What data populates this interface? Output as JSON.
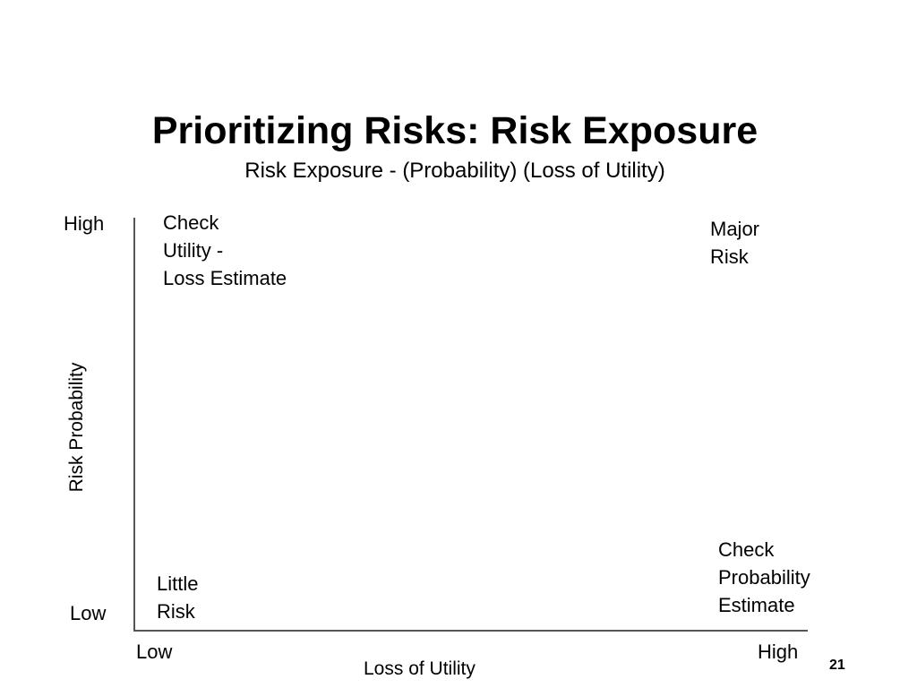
{
  "slide": {
    "title": "Prioritizing Risks:  Risk Exposure",
    "subtitle": "Risk Exposure - (Probability) (Loss of Utility)",
    "page_number": "21"
  },
  "axes": {
    "y_title": "Risk Probability",
    "y_high": "High",
    "y_low": "Low",
    "x_title": "Loss of Utility",
    "x_low": "Low",
    "x_high": "High"
  },
  "quadrants": {
    "top_left": [
      "Check",
      "Utility -",
      "Loss Estimate"
    ],
    "top_right": [
      "Major",
      "Risk"
    ],
    "bottom_left": [
      "Little",
      "Risk"
    ],
    "bottom_right": [
      "Check",
      "Probability",
      "Estimate"
    ]
  }
}
